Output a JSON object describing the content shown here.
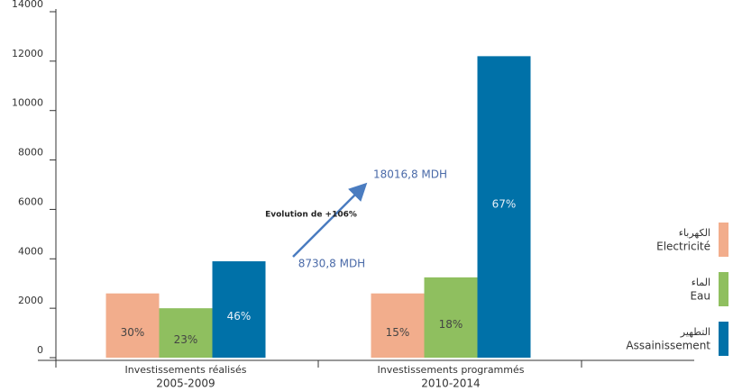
{
  "chart_data": {
    "type": "bar",
    "categories": [
      "Investissements réalisés",
      "Investissements programmés"
    ],
    "category_periods": [
      "2005-2009",
      "2010-2014"
    ],
    "series": [
      {
        "name": "Electricité",
        "name_ar": "الكهرباء",
        "color": "#f2ad8c",
        "values": [
          2600,
          2600
        ],
        "share_labels": [
          "30%",
          "15%"
        ]
      },
      {
        "name": "Eau",
        "name_ar": "الماء",
        "color": "#8fbf5f",
        "values": [
          2000,
          3250
        ],
        "share_labels": [
          "23%",
          "18%"
        ]
      },
      {
        "name": "Assainissement",
        "name_ar": "التطهير",
        "color": "#0071a8",
        "values": [
          3900,
          12200
        ],
        "share_labels": [
          "46%",
          "67%"
        ]
      }
    ],
    "ylim": [
      0,
      14000
    ],
    "yticks": [
      0,
      2000,
      4000,
      6000,
      8000,
      10000,
      12000,
      14000
    ],
    "annotations": {
      "evolution": "Evolution de +106%",
      "start_total": "8730,8 MDH",
      "end_total": "18016,8 MDH"
    },
    "legend": "right"
  }
}
